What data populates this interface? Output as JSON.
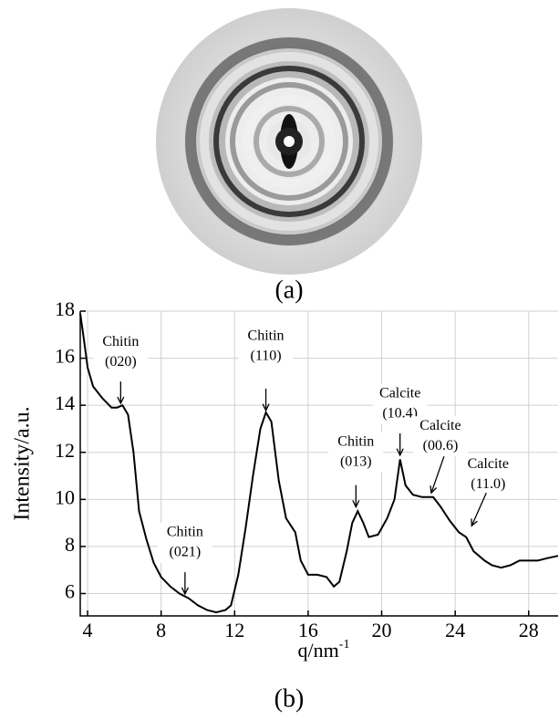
{
  "panel_a_label": "(a)",
  "chart_data": {
    "type": "line",
    "panel_label": "(b)",
    "xlabel": "q/nm",
    "xlabel_sup": "-1",
    "ylabel": "Intensity/a.u.",
    "xlim": [
      3.6,
      29.6
    ],
    "ylim": [
      5.05,
      18
    ],
    "xticks": [
      4,
      8,
      12,
      16,
      20,
      24,
      28
    ],
    "yticks": [
      6,
      8,
      10,
      12,
      14,
      16,
      18
    ],
    "grid": true,
    "color": "#000000",
    "x": [
      3.6,
      3.8,
      4.0,
      4.3,
      4.8,
      5.3,
      5.6,
      5.9,
      6.2,
      6.5,
      6.8,
      7.2,
      7.6,
      8.0,
      8.5,
      9.0,
      9.5,
      10.0,
      10.5,
      11.0,
      11.5,
      11.8,
      12.2,
      12.6,
      13.0,
      13.4,
      13.7,
      14.0,
      14.4,
      14.8,
      15.3,
      15.6,
      16.0,
      16.5,
      17.0,
      17.4,
      17.7,
      18.1,
      18.4,
      18.7,
      19.0,
      19.3,
      19.8,
      20.3,
      20.7,
      21.0,
      21.3,
      21.7,
      22.2,
      22.8,
      23.2,
      23.7,
      24.2,
      24.6,
      25.0,
      25.6,
      26.0,
      26.5,
      27.0,
      27.5,
      28.0,
      28.5,
      29.0,
      29.6
    ],
    "values": [
      17.9,
      16.8,
      15.6,
      14.8,
      14.3,
      13.9,
      13.9,
      14.0,
      13.6,
      12.0,
      9.5,
      8.3,
      7.3,
      6.7,
      6.3,
      6.0,
      5.8,
      5.5,
      5.3,
      5.2,
      5.3,
      5.5,
      6.8,
      8.8,
      11.0,
      13.0,
      13.7,
      13.3,
      10.8,
      9.2,
      8.6,
      7.4,
      6.8,
      6.8,
      6.7,
      6.3,
      6.5,
      7.8,
      9.0,
      9.5,
      9.0,
      8.4,
      8.5,
      9.2,
      10.0,
      11.7,
      10.6,
      10.2,
      10.1,
      10.1,
      9.7,
      9.1,
      8.6,
      8.4,
      7.8,
      7.4,
      7.2,
      7.1,
      7.2,
      7.4,
      7.4,
      7.4,
      7.5,
      7.6
    ],
    "annotations": [
      {
        "lines": [
          "Chitin",
          "(020)"
        ],
        "x": 5.8,
        "y": 14.0
      },
      {
        "lines": [
          "Chitin",
          "(021)"
        ],
        "x": 9.3,
        "y": 5.9
      },
      {
        "lines": [
          "Chitin",
          "(110)"
        ],
        "x": 13.7,
        "y": 13.7
      },
      {
        "lines": [
          "Chitin",
          "(013)"
        ],
        "x": 18.6,
        "y": 9.6
      },
      {
        "lines": [
          "Calcite",
          "(10.4)"
        ],
        "x": 21.0,
        "y": 11.8
      },
      {
        "lines": [
          "Calcite",
          "(00.6)"
        ],
        "x": 22.7,
        "y": 10.2
      },
      {
        "lines": [
          "Calcite",
          "(11.0)"
        ],
        "x": 24.9,
        "y": 8.8
      }
    ]
  }
}
